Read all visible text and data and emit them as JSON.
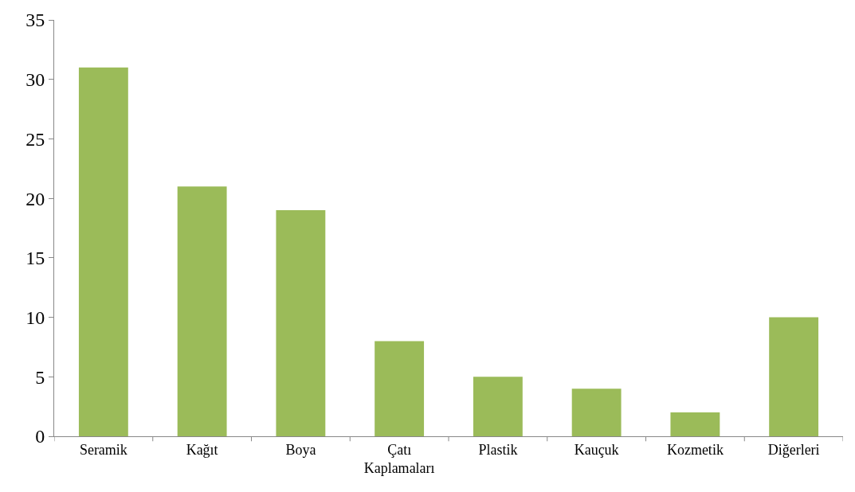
{
  "chart_data": {
    "type": "bar",
    "categories": [
      "Seramik",
      "Kağıt",
      "Boya",
      "Çatı Kaplamaları",
      "Plastik",
      "Kauçuk",
      "Kozmetik",
      "Diğerleri"
    ],
    "values": [
      31,
      21,
      19,
      8,
      5,
      4,
      2,
      10
    ],
    "color": "#9bbb59",
    "ylim": [
      0,
      35
    ],
    "yticks": [
      0,
      5,
      10,
      15,
      20,
      25,
      30,
      35
    ]
  }
}
